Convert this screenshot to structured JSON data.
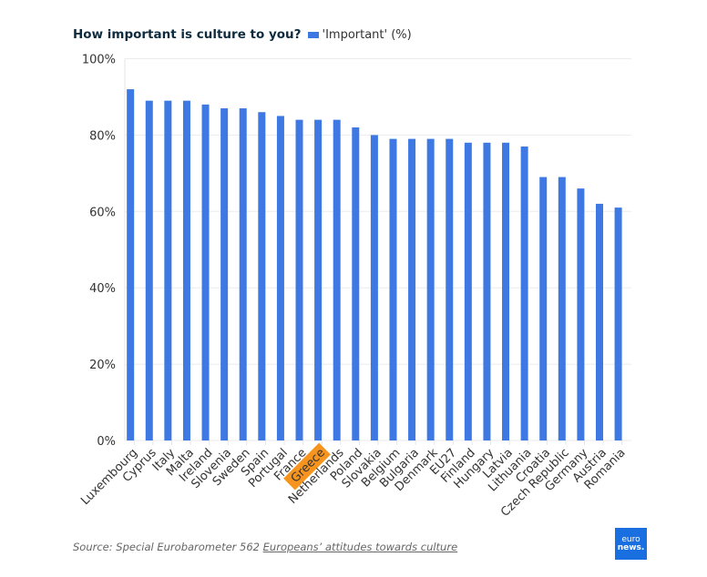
{
  "chart_data": {
    "type": "bar",
    "title": "How important is culture to you?",
    "legend": [
      {
        "name": "'Important' (%)",
        "color": "#3d78e3"
      }
    ],
    "legend_position": "top-left",
    "xlabel": "",
    "ylabel": "",
    "ylim": [
      0,
      100
    ],
    "y_ticks": [
      0,
      20,
      40,
      60,
      80,
      100
    ],
    "y_tick_labels": [
      "0%",
      "20%",
      "40%",
      "60%",
      "80%",
      "100%"
    ],
    "grid": true,
    "highlight_category": "Greece",
    "highlight_color": "#f7941d",
    "categories": [
      "Luxembourg",
      "Cyprus",
      "Italy",
      "Malta",
      "Ireland",
      "Slovenia",
      "Sweden",
      "Spain",
      "Portugal",
      "France",
      "Greece",
      "Netherlands",
      "Poland",
      "Slovakia",
      "Belgium",
      "Bulgaria",
      "Denmark",
      "EU27",
      "Finland",
      "Hungary",
      "Latvia",
      "Lithuania",
      "Croatia",
      "Czech Republic",
      "Germany",
      "Austria",
      "Romania"
    ],
    "series": [
      {
        "name": "'Important' (%)",
        "color": "#3d78e3",
        "values": [
          92,
          89,
          89,
          89,
          88,
          87,
          87,
          86,
          85,
          84,
          84,
          84,
          82,
          80,
          79,
          79,
          79,
          79,
          78,
          78,
          78,
          77,
          69,
          69,
          66,
          62,
          61
        ]
      }
    ]
  },
  "source": {
    "prefix": "Source: Special Eurobarometer 562 ",
    "link_text": "Europeans’ attitudes towards culture"
  },
  "logo": {
    "top": "euro",
    "bottom": "news."
  }
}
